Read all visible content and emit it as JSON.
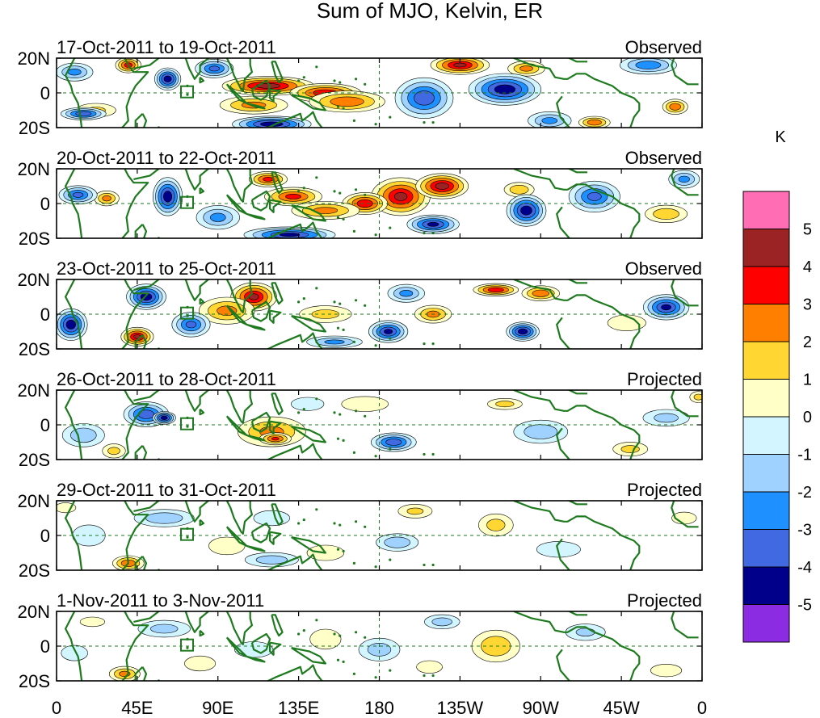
{
  "chart_data": {
    "type": "heatmap",
    "title": "Sum of MJO, Kelvin, ER",
    "units": "K",
    "x_ticks": [
      "0",
      "45E",
      "90E",
      "135E",
      "180",
      "135W",
      "90W",
      "45W",
      "0"
    ],
    "y_ticks": [
      "20N",
      "0",
      "20S"
    ],
    "xlim": [
      0,
      360
    ],
    "ylim": [
      -20,
      20
    ],
    "colorbar": {
      "labels": [
        "5",
        "4",
        "3",
        "2",
        "1",
        "0",
        "-1",
        "-2",
        "-3",
        "-4",
        "-5"
      ],
      "colors": [
        "#ff6eb4",
        "#9b2323",
        "#ff0000",
        "#ff7f00",
        "#ffd632",
        "#ffffc8",
        "#d2f5ff",
        "#a0d2ff",
        "#1e90ff",
        "#4169e1",
        "#00008b",
        "#8b2be2"
      ]
    },
    "panels": [
      {
        "date": "17-Oct-2011 to 19-Oct-2011",
        "type": "Observed",
        "blobs": [
          {
            "lon": 118,
            "lat": 4,
            "rx": 28,
            "ry": 6,
            "v": 5.3
          },
          {
            "lon": 150,
            "lat": 0,
            "rx": 22,
            "ry": 6,
            "v": 4.5
          },
          {
            "lon": 162,
            "lat": -5,
            "rx": 24,
            "ry": 7,
            "v": 3.5
          },
          {
            "lon": 40,
            "lat": 16,
            "rx": 8,
            "ry": 5,
            "v": 4.2
          },
          {
            "lon": 110,
            "lat": -7,
            "rx": 22,
            "ry": 6,
            "v": 3
          },
          {
            "lon": 225,
            "lat": 16,
            "rx": 18,
            "ry": 6,
            "v": 5
          },
          {
            "lon": 262,
            "lat": 14,
            "rx": 12,
            "ry": 5,
            "v": 3
          },
          {
            "lon": 300,
            "lat": -17,
            "rx": 10,
            "ry": 4,
            "v": 3.5
          },
          {
            "lon": 345,
            "lat": -8,
            "rx": 8,
            "ry": 5,
            "v": 3.5
          },
          {
            "lon": 22,
            "lat": -10,
            "rx": 14,
            "ry": 5,
            "v": 1.8
          },
          {
            "lon": 62,
            "lat": 8,
            "rx": 8,
            "ry": 7,
            "v": -5.5
          },
          {
            "lon": 15,
            "lat": -12,
            "rx": 14,
            "ry": 4,
            "v": -4.5
          },
          {
            "lon": 10,
            "lat": 12,
            "rx": 12,
            "ry": 6,
            "v": -3
          },
          {
            "lon": 88,
            "lat": 14,
            "rx": 12,
            "ry": 6,
            "v": -4
          },
          {
            "lon": 120,
            "lat": -18,
            "rx": 24,
            "ry": 5,
            "v": -5.5
          },
          {
            "lon": 205,
            "lat": -3,
            "rx": 18,
            "ry": 13,
            "v": -4.5
          },
          {
            "lon": 250,
            "lat": 2,
            "rx": 22,
            "ry": 10,
            "v": -5.5
          },
          {
            "lon": 330,
            "lat": 16,
            "rx": 18,
            "ry": 6,
            "v": -3.5
          },
          {
            "lon": 275,
            "lat": -16,
            "rx": 14,
            "ry": 6,
            "v": -3
          }
        ]
      },
      {
        "date": "20-Oct-2011 to 22-Oct-2011",
        "type": "Observed",
        "blobs": [
          {
            "lon": 192,
            "lat": 4,
            "rx": 18,
            "ry": 12,
            "v": 5
          },
          {
            "lon": 215,
            "lat": 10,
            "rx": 16,
            "ry": 8,
            "v": 5.3
          },
          {
            "lon": 172,
            "lat": 0,
            "rx": 14,
            "ry": 7,
            "v": 4.5
          },
          {
            "lon": 132,
            "lat": 4,
            "rx": 18,
            "ry": 6,
            "v": 4
          },
          {
            "lon": 118,
            "lat": 14,
            "rx": 12,
            "ry": 5,
            "v": 4
          },
          {
            "lon": 150,
            "lat": -4,
            "rx": 22,
            "ry": 6,
            "v": 3
          },
          {
            "lon": 28,
            "lat": 3,
            "rx": 8,
            "ry": 5,
            "v": 3
          },
          {
            "lon": 258,
            "lat": 8,
            "rx": 10,
            "ry": 5,
            "v": 2.5
          },
          {
            "lon": 340,
            "lat": -6,
            "rx": 14,
            "ry": 6,
            "v": 2.5
          },
          {
            "lon": 62,
            "lat": 4,
            "rx": 9,
            "ry": 12,
            "v": -5.5
          },
          {
            "lon": 12,
            "lat": 5,
            "rx": 12,
            "ry": 6,
            "v": -4
          },
          {
            "lon": 210,
            "lat": -12,
            "rx": 16,
            "ry": 6,
            "v": -5
          },
          {
            "lon": 262,
            "lat": -4,
            "rx": 12,
            "ry": 10,
            "v": -5.5
          },
          {
            "lon": 300,
            "lat": 4,
            "rx": 16,
            "ry": 10,
            "v": -4
          },
          {
            "lon": 350,
            "lat": 14,
            "rx": 10,
            "ry": 6,
            "v": -3
          },
          {
            "lon": 130,
            "lat": -18,
            "rx": 28,
            "ry": 5,
            "v": -5
          },
          {
            "lon": 90,
            "lat": -8,
            "rx": 14,
            "ry": 8,
            "v": -3
          }
        ]
      },
      {
        "date": "23-Oct-2011 to 25-Oct-2011",
        "type": "Observed",
        "blobs": [
          {
            "lon": 110,
            "lat": 10,
            "rx": 14,
            "ry": 9,
            "v": 5
          },
          {
            "lon": 95,
            "lat": 2,
            "rx": 18,
            "ry": 9,
            "v": 3
          },
          {
            "lon": 45,
            "lat": -13,
            "rx": 10,
            "ry": 6,
            "v": 5
          },
          {
            "lon": 245,
            "lat": 14,
            "rx": 14,
            "ry": 4,
            "v": 4.5
          },
          {
            "lon": 270,
            "lat": 12,
            "rx": 12,
            "ry": 5,
            "v": 3.5
          },
          {
            "lon": 210,
            "lat": 0,
            "rx": 12,
            "ry": 6,
            "v": 3
          },
          {
            "lon": 150,
            "lat": 0,
            "rx": 18,
            "ry": 6,
            "v": 2
          },
          {
            "lon": 318,
            "lat": -5,
            "rx": 14,
            "ry": 6,
            "v": 1.5
          },
          {
            "lon": 50,
            "lat": 10,
            "rx": 12,
            "ry": 8,
            "v": -5.5
          },
          {
            "lon": 8,
            "lat": -6,
            "rx": 10,
            "ry": 10,
            "v": -5.5
          },
          {
            "lon": 75,
            "lat": -6,
            "rx": 12,
            "ry": 8,
            "v": -4
          },
          {
            "lon": 185,
            "lat": -10,
            "rx": 12,
            "ry": 7,
            "v": -5
          },
          {
            "lon": 260,
            "lat": -10,
            "rx": 10,
            "ry": 6,
            "v": -5.5
          },
          {
            "lon": 340,
            "lat": 4,
            "rx": 14,
            "ry": 8,
            "v": -5
          },
          {
            "lon": 195,
            "lat": 12,
            "rx": 12,
            "ry": 6,
            "v": -3
          },
          {
            "lon": 155,
            "lat": -16,
            "rx": 18,
            "ry": 4,
            "v": -3
          }
        ]
      },
      {
        "date": "26-Oct-2011 to 28-Oct-2011",
        "type": "Projected",
        "blobs": [
          {
            "lon": 120,
            "lat": -4,
            "rx": 22,
            "ry": 10,
            "v": 3
          },
          {
            "lon": 122,
            "lat": -8,
            "rx": 10,
            "ry": 4,
            "v": 3.8
          },
          {
            "lon": 250,
            "lat": 12,
            "rx": 12,
            "ry": 4,
            "v": 2
          },
          {
            "lon": 320,
            "lat": -14,
            "rx": 12,
            "ry": 5,
            "v": 2
          },
          {
            "lon": 358,
            "lat": 16,
            "rx": 6,
            "ry": 4,
            "v": 2
          },
          {
            "lon": 32,
            "lat": -15,
            "rx": 8,
            "ry": 5,
            "v": 2
          },
          {
            "lon": 172,
            "lat": 12,
            "rx": 18,
            "ry": 6,
            "v": 1.2
          },
          {
            "lon": 50,
            "lat": 6,
            "rx": 14,
            "ry": 8,
            "v": -4.5
          },
          {
            "lon": 60,
            "lat": 4,
            "rx": 7,
            "ry": 4,
            "v": -5.5
          },
          {
            "lon": 188,
            "lat": -10,
            "rx": 14,
            "ry": 6,
            "v": -4.5
          },
          {
            "lon": 15,
            "lat": -6,
            "rx": 14,
            "ry": 8,
            "v": -2.5
          },
          {
            "lon": 270,
            "lat": -4,
            "rx": 18,
            "ry": 8,
            "v": -2.5
          },
          {
            "lon": 340,
            "lat": 4,
            "rx": 16,
            "ry": 6,
            "v": -2
          },
          {
            "lon": 140,
            "lat": 12,
            "rx": 12,
            "ry": 5,
            "v": -1.5
          }
        ]
      },
      {
        "date": "29-Oct-2011 to 31-Oct-2011",
        "type": "Projected",
        "blobs": [
          {
            "lon": 40,
            "lat": -16,
            "rx": 10,
            "ry": 5,
            "v": 3.5
          },
          {
            "lon": 245,
            "lat": 6,
            "rx": 12,
            "ry": 8,
            "v": 2
          },
          {
            "lon": 200,
            "lat": 14,
            "rx": 12,
            "ry": 5,
            "v": 1.8
          },
          {
            "lon": 150,
            "lat": -10,
            "rx": 14,
            "ry": 6,
            "v": 1.3
          },
          {
            "lon": 95,
            "lat": -6,
            "rx": 14,
            "ry": 7,
            "v": 1.2
          },
          {
            "lon": 5,
            "lat": 16,
            "rx": 8,
            "ry": 4,
            "v": 1.2
          },
          {
            "lon": 350,
            "lat": 10,
            "rx": 10,
            "ry": 5,
            "v": 1
          },
          {
            "lon": 60,
            "lat": 10,
            "rx": 20,
            "ry": 6,
            "v": -2.5
          },
          {
            "lon": 120,
            "lat": -14,
            "rx": 18,
            "ry": 5,
            "v": -2.3
          },
          {
            "lon": 190,
            "lat": -4,
            "rx": 14,
            "ry": 6,
            "v": -2.5
          },
          {
            "lon": 280,
            "lat": -8,
            "rx": 16,
            "ry": 6,
            "v": -1.5
          },
          {
            "lon": 18,
            "lat": 0,
            "rx": 12,
            "ry": 8,
            "v": -1.5
          },
          {
            "lon": 120,
            "lat": 10,
            "rx": 14,
            "ry": 6,
            "v": -1.2
          }
        ]
      },
      {
        "date": "1-Nov-2011 to 3-Nov-2011",
        "type": "Projected",
        "blobs": [
          {
            "lon": 245,
            "lat": 0,
            "rx": 16,
            "ry": 11,
            "v": 2.5
          },
          {
            "lon": 38,
            "lat": -16,
            "rx": 10,
            "ry": 5,
            "v": 3
          },
          {
            "lon": 80,
            "lat": -10,
            "rx": 12,
            "ry": 6,
            "v": 1.2
          },
          {
            "lon": 150,
            "lat": 4,
            "rx": 12,
            "ry": 8,
            "v": 1.2
          },
          {
            "lon": 208,
            "lat": -12,
            "rx": 10,
            "ry": 5,
            "v": 1.2
          },
          {
            "lon": 340,
            "lat": -14,
            "rx": 12,
            "ry": 5,
            "v": 1.2
          },
          {
            "lon": 20,
            "lat": 14,
            "rx": 10,
            "ry": 4,
            "v": 1
          },
          {
            "lon": 60,
            "lat": 10,
            "rx": 18,
            "ry": 6,
            "v": -2
          },
          {
            "lon": 180,
            "lat": -2,
            "rx": 14,
            "ry": 8,
            "v": -2.2
          },
          {
            "lon": 215,
            "lat": 14,
            "rx": 12,
            "ry": 5,
            "v": -2.2
          },
          {
            "lon": 295,
            "lat": 8,
            "rx": 14,
            "ry": 6,
            "v": -1.8
          },
          {
            "lon": 110,
            "lat": -2,
            "rx": 14,
            "ry": 6,
            "v": -1.5
          },
          {
            "lon": 10,
            "lat": -4,
            "rx": 10,
            "ry": 6,
            "v": -1.3
          }
        ]
      }
    ]
  }
}
